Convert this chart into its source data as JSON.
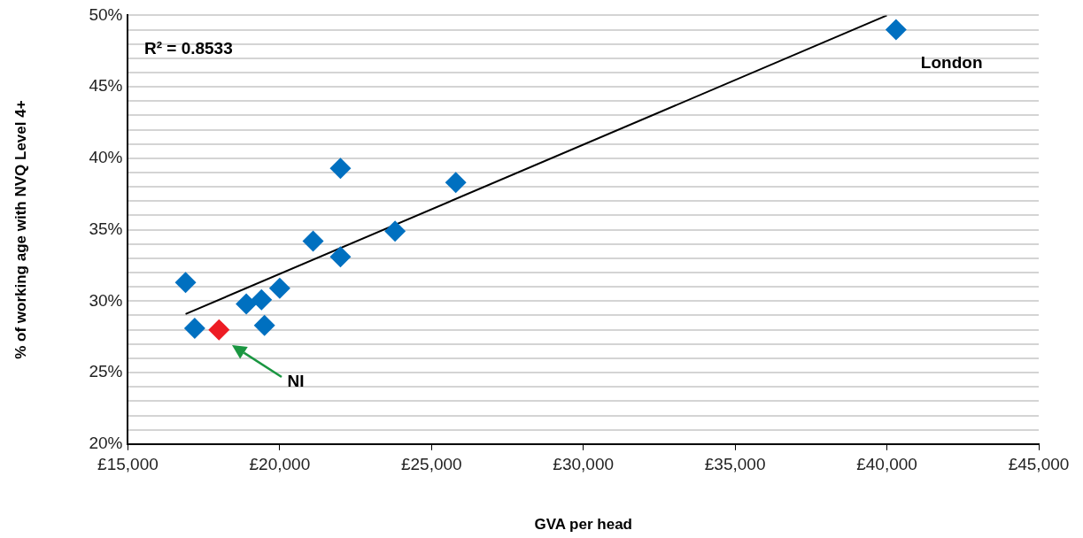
{
  "chart_data": {
    "type": "scatter",
    "xlabel": "GVA per head",
    "ylabel": "% of working age with NVQ Level 4+",
    "annotations": [
      "R² = 0.8533",
      {
        "text": "London",
        "x": 40300,
        "y": 49.0
      },
      "NI"
    ],
    "series": [
      {
        "marker": "diamond",
        "colors": [
          "#0070c0",
          "#0070c0",
          "#ed1c24",
          "#0070c0",
          "#0070c0",
          "#0070c0",
          "#0070c0",
          "#0070c0",
          "#0070c0",
          "#0070c0",
          "#0070c0",
          "#0070c0",
          "#0070c0"
        ],
        "x": [
          16900,
          17200,
          18000,
          18900,
          19400,
          19500,
          20000,
          21100,
          22000,
          22000,
          23800,
          25800,
          40300
        ],
        "values": [
          31.3,
          28.1,
          28.0,
          29.8,
          30.1,
          28.3,
          30.9,
          34.2,
          39.3,
          33.1,
          34.9,
          38.3,
          49.0
        ]
      },
      {
        "type": "line",
        "marker": "none",
        "color": "#000000",
        "x": [
          16900,
          40000
        ],
        "values": [
          29.1,
          50.0
        ]
      }
    ],
    "grid": "y",
    "legend": false,
    "xlim": [
      15000,
      45000
    ],
    "xticks": [
      {
        "value": 15000,
        "label": "£15,000"
      },
      {
        "value": 20000,
        "label": "£20,000"
      },
      {
        "value": 25000,
        "label": "£25,000"
      },
      {
        "value": 30000,
        "label": "£30,000"
      },
      {
        "value": 35000,
        "label": "£35,000"
      },
      {
        "value": 40000,
        "label": "£40,000"
      },
      {
        "value": 45000,
        "label": "£45,000"
      }
    ],
    "ylim": [
      20,
      50
    ],
    "yticks": [
      {
        "value": 20,
        "label": "20%"
      },
      {
        "value": 21,
        "label": null
      },
      {
        "value": 22,
        "label": null
      },
      {
        "value": 23,
        "label": null
      },
      {
        "value": 24,
        "label": null
      },
      {
        "value": 25,
        "label": "25%"
      },
      {
        "value": 26,
        "label": null
      },
      {
        "value": 27,
        "label": null
      },
      {
        "value": 28,
        "label": null
      },
      {
        "value": 29,
        "label": null
      },
      {
        "value": 30,
        "label": "30%"
      },
      {
        "value": 31,
        "label": null
      },
      {
        "value": 32,
        "label": null
      },
      {
        "value": 33,
        "label": null
      },
      {
        "value": 34,
        "label": null
      },
      {
        "value": 35,
        "label": "35%"
      },
      {
        "value": 36,
        "label": null
      },
      {
        "value": 37,
        "label": null
      },
      {
        "value": 38,
        "label": null
      },
      {
        "value": 39,
        "label": null
      },
      {
        "value": 40,
        "label": "40%"
      },
      {
        "value": 41,
        "label": null
      },
      {
        "value": 42,
        "label": null
      },
      {
        "value": 43,
        "label": null
      },
      {
        "value": 44,
        "label": null
      },
      {
        "value": 45,
        "label": "45%"
      },
      {
        "value": 46,
        "label": null
      },
      {
        "value": 47,
        "label": null
      },
      {
        "value": 48,
        "label": null
      },
      {
        "value": 49,
        "label": null
      },
      {
        "value": 50,
        "label": "50%"
      }
    ]
  }
}
